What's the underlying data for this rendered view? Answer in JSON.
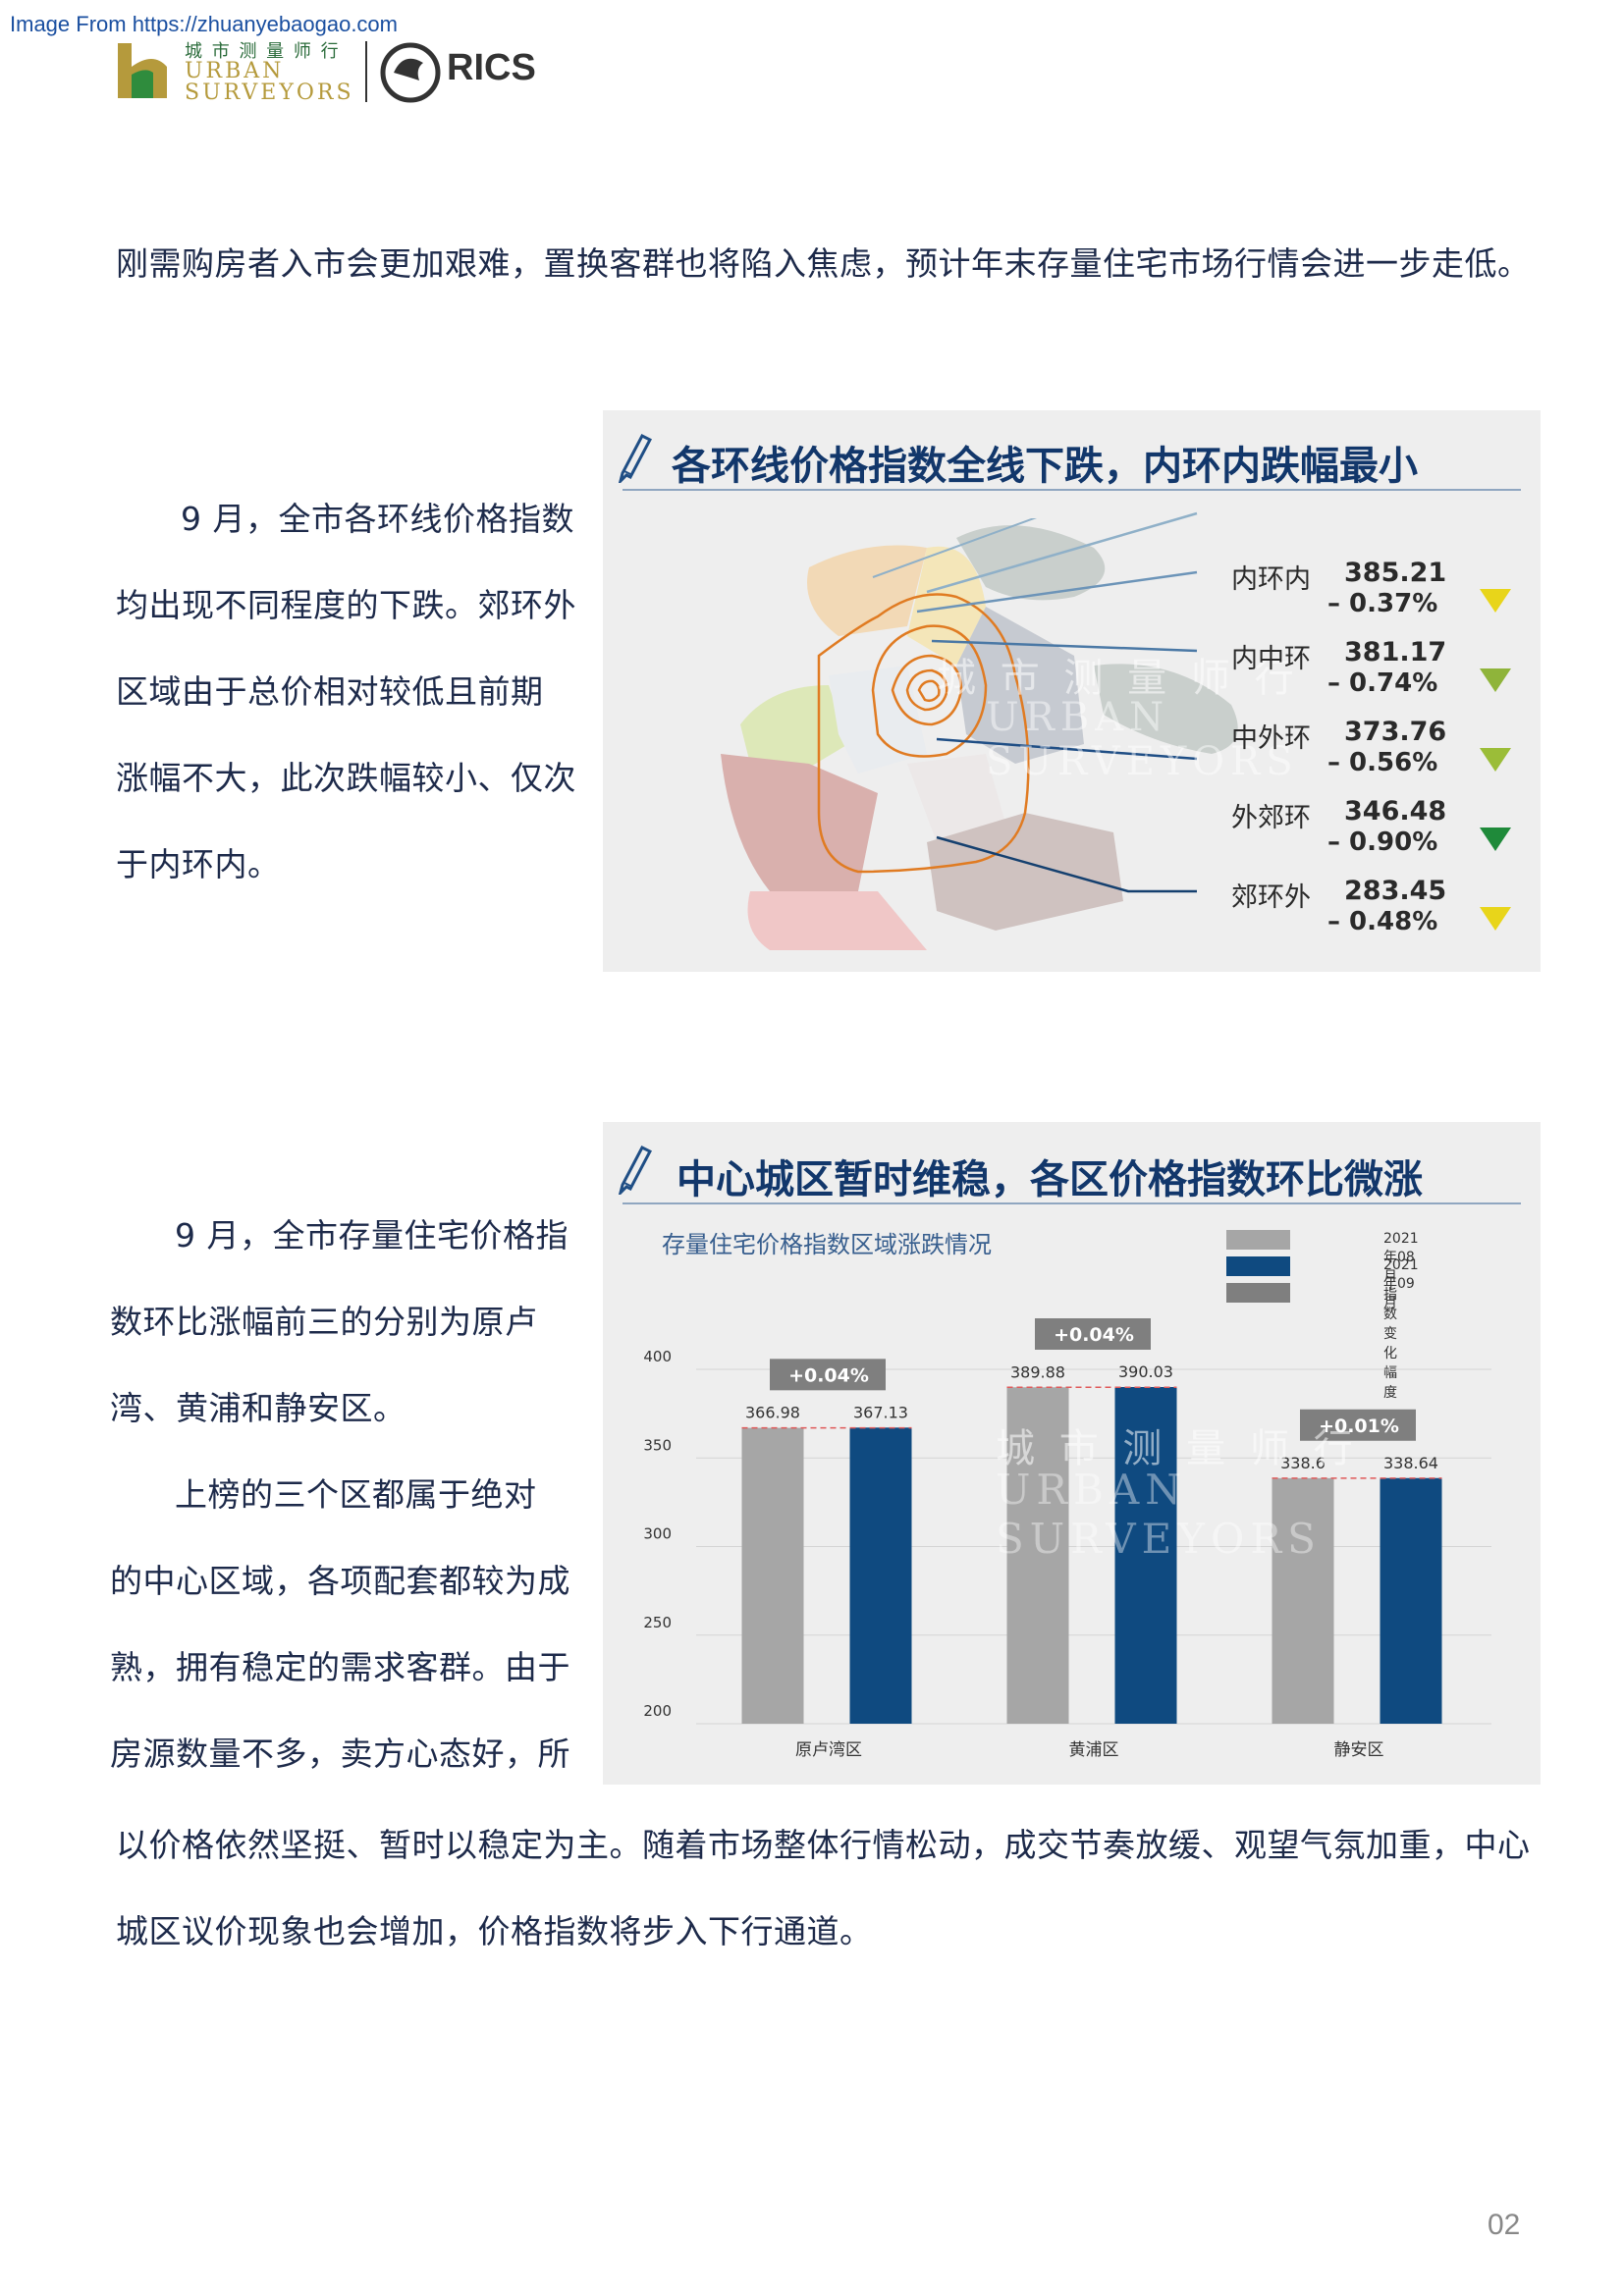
{
  "source_url": "Image From https://zhuanyebaogao.com",
  "header": {
    "logo_cn": "城 市 测 量 师 行",
    "logo_en_line1": "URBAN",
    "logo_en_line2": "SURVEYORS",
    "rics": "RICS"
  },
  "intro_line": "刚需购房者入市会更加艰难，置换客群也将陷入焦虑，预计年末存量住宅市场行情会进一步走低。",
  "section1": {
    "title": "各环线价格指数全线下跌，内环内跌幅最小",
    "text_lines": [
      "9 月，全市各环线价格指数",
      "均出现不同程度的下跌。郊环外",
      "区域由于总价相对较低且前期",
      "涨幅不大，此次跌幅较小、仅次",
      "于内环内。"
    ],
    "rings": [
      {
        "name": "内环内",
        "value": "385.21",
        "change": "– 0.37%",
        "color": "#e8d51a"
      },
      {
        "name": "内中环",
        "value": "381.17",
        "change": "– 0.74%",
        "color": "#8fb43a"
      },
      {
        "name": "中外环",
        "value": "373.76",
        "change": "– 0.56%",
        "color": "#9bbd38"
      },
      {
        "name": "外郊环",
        "value": "346.48",
        "change": "– 0.90%",
        "color": "#1f8a3a"
      },
      {
        "name": "郊环外",
        "value": "283.45",
        "change": "– 0.48%",
        "color": "#e8d51a"
      }
    ],
    "map_watermark": [
      "城 市 测 量 师 行",
      "URBAN",
      "SURVEYORS"
    ]
  },
  "section2": {
    "title": "中心城区暂时维稳，各区价格指数环比微涨",
    "text_lines": [
      "9 月，全市存量住宅价格指",
      "数环比涨幅前三的分别为原卢",
      "湾、黄浦和静安区。",
      "上榜的三个区都属于绝对",
      "的中心区域，各项配套都较为成",
      "熟，拥有稳定的需求客群。由于",
      "房源数量不多，卖方心态好，所"
    ],
    "continuation_lines": [
      "以价格依然坚挺、暂时以稳定为主。随着市场整体行情松动，成交节奏放缓、观望气氛加重，中心",
      "城区议价现象也会增加，价格指数将步入下行通道。"
    ]
  },
  "chart_data": {
    "type": "bar",
    "title": "存量住宅价格指数区域涨跌情况",
    "categories": [
      "原卢湾区",
      "黄浦区",
      "静安区"
    ],
    "series": [
      {
        "name": "2021年08月",
        "values": [
          366.98,
          389.88,
          338.6
        ],
        "labels": [
          "366.98",
          "389.88",
          "338.6"
        ],
        "color": "#a6a6a6"
      },
      {
        "name": "2021年09月",
        "values": [
          367.13,
          390.03,
          338.64
        ],
        "labels": [
          "367.13",
          "390.03",
          "338.64"
        ],
        "color": "#0f4a80"
      }
    ],
    "change_legend": {
      "name": "指数变化幅度",
      "color": "#7f7f7f"
    },
    "changes": [
      "+0.04%",
      "+0.04%",
      "+0.01%"
    ],
    "ylim": [
      200,
      400
    ],
    "yticks": [
      "400",
      "350",
      "300",
      "250",
      "200"
    ],
    "grid": true,
    "legend_position": "top-right"
  },
  "page_number": "02"
}
